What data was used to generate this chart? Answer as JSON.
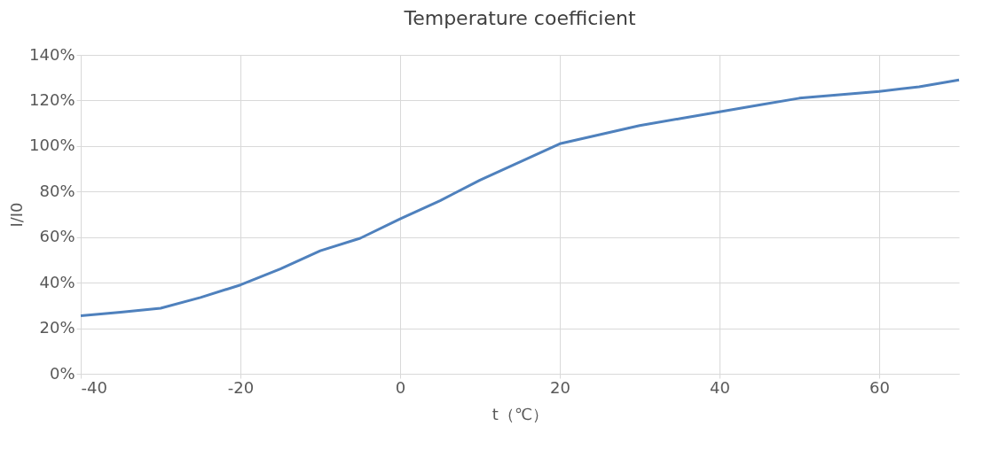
{
  "chart_data": {
    "type": "line",
    "title": "Temperature coefficient",
    "xlabel": "t（℃）",
    "ylabel": "I/I0",
    "x": [
      -40,
      -35,
      -30,
      -25,
      -20,
      -15,
      -10,
      -5,
      0,
      5,
      10,
      15,
      20,
      25,
      30,
      35,
      40,
      45,
      50,
      55,
      60,
      65,
      70
    ],
    "series": [
      {
        "color": "#4f81bd",
        "values": [
          25.5,
          27,
          28.8,
          33.5,
          39,
          46,
          54,
          59.5,
          68,
          76,
          85,
          93,
          101,
          105,
          109,
          112,
          115,
          118,
          121,
          122.5,
          124,
          126,
          129
        ]
      }
    ],
    "xlim": [
      -40,
      70
    ],
    "xticks": [
      -40,
      -20,
      0,
      20,
      40,
      60
    ],
    "ylim": [
      0,
      140
    ],
    "yticks": [
      {
        "value": 0,
        "label": "0%"
      },
      {
        "value": 20,
        "label": "20%"
      },
      {
        "value": 40,
        "label": "40%"
      },
      {
        "value": 60,
        "label": "60%"
      },
      {
        "value": 80,
        "label": "80%"
      },
      {
        "value": 100,
        "label": "100%"
      },
      {
        "value": 120,
        "label": "120%"
      },
      {
        "value": 140,
        "label": "140%"
      }
    ],
    "grid": true,
    "marker": "none",
    "line_style": "solid"
  }
}
